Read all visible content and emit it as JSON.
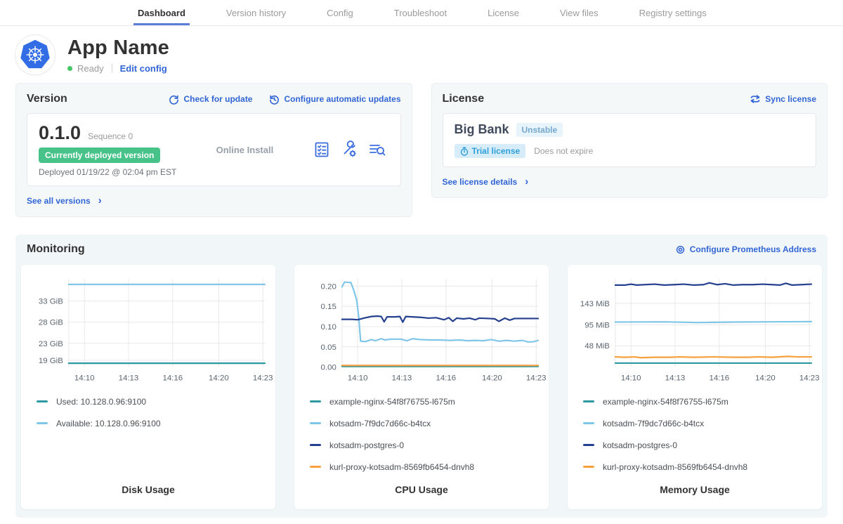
{
  "nav": {
    "tabs": [
      {
        "label": "Dashboard",
        "active": true
      },
      {
        "label": "Version history",
        "active": false
      },
      {
        "label": "Config",
        "active": false
      },
      {
        "label": "Troubleshoot",
        "active": false
      },
      {
        "label": "License",
        "active": false
      },
      {
        "label": "View files",
        "active": false
      },
      {
        "label": "Registry settings",
        "active": false
      }
    ]
  },
  "app": {
    "name": "App Name",
    "status": "Ready",
    "edit_config_label": "Edit config"
  },
  "version_card": {
    "title": "Version",
    "check_for_update_label": "Check for update",
    "configure_updates_label": "Configure automatic updates",
    "version_number": "0.1.0",
    "sequence_label": "Sequence 0",
    "deployed_badge": "Currently deployed version",
    "install_type": "Online Install",
    "deployed_at": "Deployed 01/19/22 @ 02:04 pm EST",
    "see_all_label": "See all versions"
  },
  "license_card": {
    "title": "License",
    "sync_label": "Sync license",
    "customer_name": "Big Bank",
    "channel_badge": "Unstable",
    "trial_badge": "Trial license",
    "expiry_text": "Does not expire",
    "see_details_label": "See license details"
  },
  "monitoring": {
    "title": "Monitoring",
    "configure_label": "Configure Prometheus Address"
  },
  "icons": {
    "app-logo": "kubernetes-helm-wheel",
    "check-update": "refresh-circular-arrow",
    "configure-updates": "clock-with-arrow",
    "version-actions": [
      "preflight-checklist-icon",
      "config-wrench-gear-icon",
      "deploy-logs-magnifier-icon"
    ],
    "sync-license": "sync-arrows",
    "trial": "stopwatch",
    "configure-prometheus": "gear"
  },
  "colors": {
    "link_blue": "#3165d6",
    "active_tab_underline": "#5b7fd9",
    "ready_green": "#44c767",
    "deployed_badge_green": "#47c288",
    "panel_bg": "#f4f8f9",
    "monitoring_bg": "#f1f6f8",
    "series_teal": "#2c9aa0",
    "series_lightblue": "#7fc6e8",
    "series_navy": "#25408f",
    "series_orange": "#f7a13d"
  },
  "chart_data": [
    {
      "type": "line",
      "title": "Disk Usage",
      "ylim": [
        17.4,
        38.2
      ],
      "yticks": [
        {
          "v": 19,
          "label": "19 GiB"
        },
        {
          "v": 23,
          "label": "23 GiB"
        },
        {
          "v": 28,
          "label": "28 GiB"
        },
        {
          "v": 33,
          "label": "33 GiB"
        }
      ],
      "xticks": [
        {
          "f": 0.08,
          "label": "14:10"
        },
        {
          "f": 0.305,
          "label": "14:13"
        },
        {
          "f": 0.53,
          "label": "14:16"
        },
        {
          "f": 0.765,
          "label": "14:20"
        },
        {
          "f": 0.99,
          "label": "14:23"
        }
      ],
      "series": [
        {
          "name": "Used",
          "legend": "Used: 10.128.0.96:9100",
          "color": "#2c9aa0",
          "points": [
            [
              0,
              18.3
            ],
            [
              1,
              18.3
            ]
          ]
        },
        {
          "name": "Available",
          "legend": "Available: 10.128.0.96:9100",
          "color": "#7fc6e8",
          "points": [
            [
              0,
              36.9
            ],
            [
              1,
              36.9
            ]
          ]
        }
      ]
    },
    {
      "type": "line",
      "title": "CPU Usage",
      "ylim": [
        0,
        0.218
      ],
      "yticks": [
        {
          "v": 0,
          "label": "0.00"
        },
        {
          "v": 0.05,
          "label": "0.05"
        },
        {
          "v": 0.1,
          "label": "0.10"
        },
        {
          "v": 0.15,
          "label": "0.15"
        },
        {
          "v": 0.2,
          "label": "0.20"
        }
      ],
      "xticks": [
        {
          "f": 0.08,
          "label": "14:10"
        },
        {
          "f": 0.305,
          "label": "14:13"
        },
        {
          "f": 0.53,
          "label": "14:16"
        },
        {
          "f": 0.765,
          "label": "14:20"
        },
        {
          "f": 0.99,
          "label": "14:23"
        }
      ],
      "series": [
        {
          "name": "example-nginx",
          "legend": "example-nginx-54f8f76755-l675m",
          "color": "#2c9aa0",
          "points": [
            [
              0,
              0.0015
            ],
            [
              1,
              0.0015
            ]
          ]
        },
        {
          "name": "kotsadm",
          "legend": "kotsadm-7f9dc7d66c-b4tcx",
          "color": "#7fc6e8",
          "points": [
            [
              0,
              0.198
            ],
            [
              0.013,
              0.21
            ],
            [
              0.045,
              0.209
            ],
            [
              0.06,
              0.19
            ],
            [
              0.075,
              0.165
            ],
            [
              0.085,
              0.125
            ],
            [
              0.095,
              0.064
            ],
            [
              0.12,
              0.063
            ],
            [
              0.15,
              0.068
            ],
            [
              0.17,
              0.065
            ],
            [
              0.2,
              0.07
            ],
            [
              0.22,
              0.067
            ],
            [
              0.25,
              0.069
            ],
            [
              0.3,
              0.069
            ],
            [
              0.33,
              0.065
            ],
            [
              0.36,
              0.07
            ],
            [
              0.4,
              0.068
            ],
            [
              0.45,
              0.067
            ],
            [
              0.5,
              0.067
            ],
            [
              0.55,
              0.066
            ],
            [
              0.6,
              0.067
            ],
            [
              0.64,
              0.065
            ],
            [
              0.68,
              0.066
            ],
            [
              0.72,
              0.065
            ],
            [
              0.76,
              0.068
            ],
            [
              0.8,
              0.064
            ],
            [
              0.84,
              0.066
            ],
            [
              0.88,
              0.064
            ],
            [
              0.92,
              0.066
            ],
            [
              0.95,
              0.062
            ],
            [
              0.98,
              0.063
            ],
            [
              1,
              0.066
            ]
          ]
        },
        {
          "name": "kotsadm-postgres",
          "legend": "kotsadm-postgres-0",
          "color": "#25408f",
          "points": [
            [
              0,
              0.118
            ],
            [
              0.05,
              0.118
            ],
            [
              0.08,
              0.117
            ],
            [
              0.12,
              0.122
            ],
            [
              0.15,
              0.125
            ],
            [
              0.18,
              0.126
            ],
            [
              0.2,
              0.125
            ],
            [
              0.215,
              0.112
            ],
            [
              0.23,
              0.124
            ],
            [
              0.27,
              0.124
            ],
            [
              0.295,
              0.125
            ],
            [
              0.31,
              0.111
            ],
            [
              0.325,
              0.125
            ],
            [
              0.4,
              0.123
            ],
            [
              0.44,
              0.121
            ],
            [
              0.48,
              0.122
            ],
            [
              0.52,
              0.117
            ],
            [
              0.545,
              0.122
            ],
            [
              0.565,
              0.113
            ],
            [
              0.585,
              0.121
            ],
            [
              0.62,
              0.119
            ],
            [
              0.65,
              0.121
            ],
            [
              0.68,
              0.117
            ],
            [
              0.7,
              0.121
            ],
            [
              0.75,
              0.12
            ],
            [
              0.78,
              0.119
            ],
            [
              0.8,
              0.113
            ],
            [
              0.83,
              0.121
            ],
            [
              0.855,
              0.116
            ],
            [
              0.88,
              0.12
            ],
            [
              0.92,
              0.12
            ],
            [
              1,
              0.12
            ]
          ]
        },
        {
          "name": "kurl-proxy-kotsadm",
          "legend": "kurl-proxy-kotsadm-8569fb6454-dnvh8",
          "color": "#f7a13d",
          "points": [
            [
              0,
              0.004
            ],
            [
              1,
              0.004
            ]
          ]
        }
      ]
    },
    {
      "type": "line",
      "title": "Memory Usage",
      "ylim": [
        0,
        198
      ],
      "yticks": [
        {
          "v": 48,
          "label": "48 MiB"
        },
        {
          "v": 95,
          "label": "95 MiB"
        },
        {
          "v": 143,
          "label": "143 MiB"
        }
      ],
      "xticks": [
        {
          "f": 0.08,
          "label": "14:10"
        },
        {
          "f": 0.305,
          "label": "14:13"
        },
        {
          "f": 0.53,
          "label": "14:16"
        },
        {
          "f": 0.765,
          "label": "14:20"
        },
        {
          "f": 0.99,
          "label": "14:23"
        }
      ],
      "series": [
        {
          "name": "example-nginx",
          "legend": "example-nginx-54f8f76755-l675m",
          "color": "#2c9aa0",
          "points": [
            [
              0,
              9
            ],
            [
              1,
              9
            ]
          ]
        },
        {
          "name": "kotsadm",
          "legend": "kotsadm-7f9dc7d66c-b4tcx",
          "color": "#7fc6e8",
          "points": [
            [
              0,
              101
            ],
            [
              0.25,
              101.5
            ],
            [
              0.42,
              100
            ],
            [
              0.6,
              101
            ],
            [
              0.8,
              101.5
            ],
            [
              1,
              102
            ]
          ]
        },
        {
          "name": "kotsadm-postgres",
          "legend": "kotsadm-postgres-0",
          "color": "#25408f",
          "points": [
            [
              0,
              184
            ],
            [
              0.05,
              184
            ],
            [
              0.08,
              186
            ],
            [
              0.11,
              184
            ],
            [
              0.15,
              185
            ],
            [
              0.2,
              186
            ],
            [
              0.25,
              184
            ],
            [
              0.3,
              185
            ],
            [
              0.35,
              186
            ],
            [
              0.4,
              184
            ],
            [
              0.45,
              185
            ],
            [
              0.48,
              189
            ],
            [
              0.52,
              185
            ],
            [
              0.56,
              187
            ],
            [
              0.6,
              184
            ],
            [
              0.65,
              185
            ],
            [
              0.7,
              185
            ],
            [
              0.75,
              186
            ],
            [
              0.8,
              185
            ],
            [
              0.84,
              184
            ],
            [
              0.87,
              188
            ],
            [
              0.9,
              184
            ],
            [
              0.95,
              185
            ],
            [
              1,
              186
            ]
          ]
        },
        {
          "name": "kurl-proxy-kotsadm",
          "legend": "kurl-proxy-kotsadm-8569fb6454-dnvh8",
          "color": "#f7a13d",
          "points": [
            [
              0,
              23
            ],
            [
              0.05,
              22
            ],
            [
              0.1,
              23
            ],
            [
              0.13,
              21
            ],
            [
              0.2,
              22
            ],
            [
              0.28,
              22
            ],
            [
              0.33,
              23
            ],
            [
              0.4,
              22
            ],
            [
              0.5,
              23
            ],
            [
              0.6,
              22
            ],
            [
              0.68,
              22
            ],
            [
              0.73,
              23
            ],
            [
              0.8,
              22
            ],
            [
              0.88,
              24
            ],
            [
              0.93,
              23
            ],
            [
              1,
              23
            ]
          ]
        }
      ]
    }
  ]
}
